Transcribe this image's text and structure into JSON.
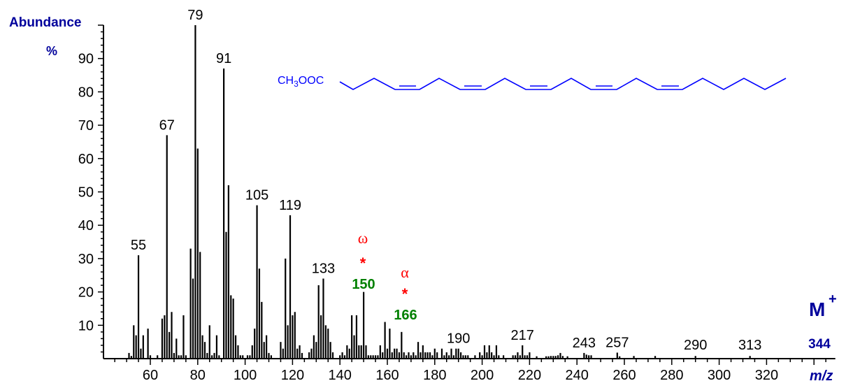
{
  "chart_data": {
    "type": "bar",
    "subtype": "mass-spectrum",
    "ylabel": "Abundance",
    "ylabel_unit": "%",
    "xlabel": "m/z",
    "xlim": [
      40,
      349
    ],
    "ylim": [
      0,
      100
    ],
    "xticks": [
      60,
      80,
      100,
      120,
      140,
      160,
      180,
      200,
      220,
      240,
      260,
      280,
      300,
      320
    ],
    "yticks": [
      10,
      20,
      30,
      40,
      50,
      60,
      70,
      80,
      90
    ],
    "grid": false,
    "bar_color": "#000000",
    "peaks": [
      [
        51,
        1.7
      ],
      [
        52,
        0.8
      ],
      [
        53,
        10
      ],
      [
        54,
        7
      ],
      [
        55,
        31
      ],
      [
        56,
        3
      ],
      [
        57,
        7
      ],
      [
        59,
        9
      ],
      [
        60,
        1
      ],
      [
        63,
        1
      ],
      [
        65,
        12
      ],
      [
        66,
        13
      ],
      [
        67,
        67
      ],
      [
        68,
        8
      ],
      [
        69,
        14
      ],
      [
        70,
        1.7
      ],
      [
        71,
        6
      ],
      [
        72,
        1
      ],
      [
        73,
        1
      ],
      [
        74,
        13
      ],
      [
        75,
        1
      ],
      [
        77,
        33
      ],
      [
        78,
        24
      ],
      [
        79,
        100
      ],
      [
        80,
        63
      ],
      [
        81,
        32
      ],
      [
        82,
        7
      ],
      [
        83,
        5
      ],
      [
        84,
        1.7
      ],
      [
        85,
        10
      ],
      [
        86,
        1
      ],
      [
        87,
        1.7
      ],
      [
        88,
        7
      ],
      [
        89,
        1
      ],
      [
        91,
        87
      ],
      [
        92,
        38
      ],
      [
        93,
        52
      ],
      [
        94,
        19
      ],
      [
        95,
        18
      ],
      [
        96,
        7
      ],
      [
        97,
        4
      ],
      [
        98,
        1
      ],
      [
        99,
        1
      ],
      [
        101,
        1
      ],
      [
        102,
        1
      ],
      [
        103,
        4
      ],
      [
        104,
        9
      ],
      [
        105,
        46
      ],
      [
        106,
        27
      ],
      [
        107,
        17
      ],
      [
        108,
        5
      ],
      [
        109,
        7
      ],
      [
        110,
        1.7
      ],
      [
        111,
        1
      ],
      [
        115,
        5
      ],
      [
        116,
        3
      ],
      [
        117,
        30
      ],
      [
        118,
        10
      ],
      [
        119,
        43
      ],
      [
        120,
        13
      ],
      [
        121,
        14
      ],
      [
        122,
        3
      ],
      [
        123,
        4
      ],
      [
        124,
        1.7
      ],
      [
        127,
        1.9
      ],
      [
        128,
        3
      ],
      [
        129,
        7
      ],
      [
        130,
        5
      ],
      [
        131,
        22
      ],
      [
        132,
        13
      ],
      [
        133,
        24
      ],
      [
        134,
        10
      ],
      [
        135,
        9
      ],
      [
        136,
        5
      ],
      [
        137,
        1.9
      ],
      [
        140,
        1
      ],
      [
        141,
        1.9
      ],
      [
        142,
        1
      ],
      [
        143,
        4
      ],
      [
        144,
        3
      ],
      [
        145,
        13
      ],
      [
        146,
        7
      ],
      [
        147,
        13
      ],
      [
        148,
        4
      ],
      [
        149,
        4
      ],
      [
        150,
        20
      ],
      [
        151,
        4
      ],
      [
        152,
        1
      ],
      [
        153,
        1
      ],
      [
        154,
        1
      ],
      [
        155,
        1
      ],
      [
        156,
        1
      ],
      [
        157,
        4
      ],
      [
        158,
        1.9
      ],
      [
        159,
        11
      ],
      [
        160,
        3
      ],
      [
        161,
        9
      ],
      [
        162,
        1.9
      ],
      [
        163,
        3
      ],
      [
        164,
        3
      ],
      [
        165,
        1.9
      ],
      [
        166,
        8
      ],
      [
        167,
        1.9
      ],
      [
        168,
        1
      ],
      [
        169,
        1.9
      ],
      [
        170,
        1
      ],
      [
        171,
        1.9
      ],
      [
        172,
        1
      ],
      [
        173,
        5
      ],
      [
        174,
        1.9
      ],
      [
        175,
        4
      ],
      [
        176,
        1.9
      ],
      [
        177,
        1.9
      ],
      [
        178,
        1.9
      ],
      [
        179,
        1
      ],
      [
        180,
        3
      ],
      [
        181,
        1.9
      ],
      [
        183,
        3
      ],
      [
        184,
        1
      ],
      [
        185,
        1.9
      ],
      [
        186,
        1
      ],
      [
        187,
        3
      ],
      [
        188,
        1
      ],
      [
        189,
        3
      ],
      [
        190,
        3
      ],
      [
        191,
        1.9
      ],
      [
        192,
        1
      ],
      [
        193,
        1
      ],
      [
        194,
        1
      ],
      [
        197,
        1
      ],
      [
        199,
        1.9
      ],
      [
        200,
        1
      ],
      [
        201,
        4
      ],
      [
        202,
        1.9
      ],
      [
        203,
        4
      ],
      [
        204,
        1.9
      ],
      [
        205,
        1
      ],
      [
        206,
        4
      ],
      [
        207,
        1
      ],
      [
        209,
        1
      ],
      [
        213,
        1
      ],
      [
        214,
        1
      ],
      [
        215,
        1.9
      ],
      [
        216,
        1
      ],
      [
        217,
        4
      ],
      [
        218,
        1
      ],
      [
        219,
        1
      ],
      [
        220,
        1.9
      ],
      [
        223,
        0.7
      ],
      [
        227,
        0.7
      ],
      [
        228,
        0.7
      ],
      [
        229,
        0.8
      ],
      [
        230,
        0.8
      ],
      [
        231,
        0.8
      ],
      [
        232,
        1
      ],
      [
        233,
        1.7
      ],
      [
        234,
        0.8
      ],
      [
        236,
        0.7
      ],
      [
        243,
        1.7
      ],
      [
        244,
        1.2
      ],
      [
        245,
        1
      ],
      [
        246,
        1
      ],
      [
        257,
        1.8
      ],
      [
        258,
        0.7
      ],
      [
        264,
        0.8
      ],
      [
        273,
        0.8
      ],
      [
        290,
        0.8
      ],
      [
        313,
        0.8
      ]
    ],
    "peak_labels": [
      "55",
      "67",
      "79",
      "91",
      "105",
      "119",
      "133",
      "190",
      "217",
      "243",
      "257",
      "290",
      "313"
    ],
    "annotations": {
      "omega": {
        "symbol": "ω",
        "marker": "*",
        "mass": "150"
      },
      "alpha": {
        "symbol": "α",
        "marker": "*",
        "mass": "166"
      },
      "molecular_ion": {
        "label": "M",
        "charge": "+",
        "mass": "344"
      }
    },
    "structure": {
      "formula_prefix": "CH",
      "formula_sub": "3",
      "formula_suffix": "OOC",
      "color": "#0000ff"
    },
    "colors": {
      "axis_title": "#00009c",
      "fragment_marker": "#ff0000",
      "fragment_mass": "#008000"
    }
  }
}
